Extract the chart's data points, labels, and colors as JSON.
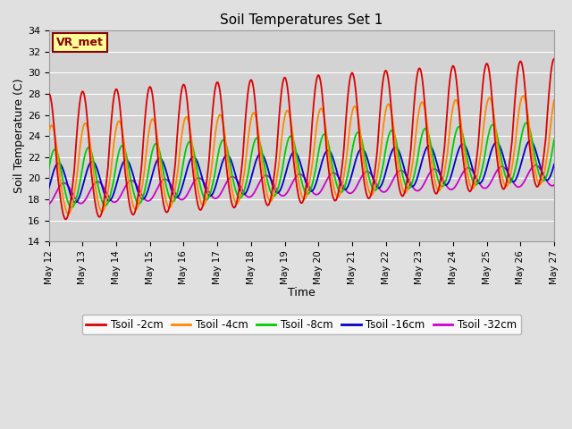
{
  "title": "Soil Temperatures Set 1",
  "xlabel": "Time",
  "ylabel": "Soil Temperature (C)",
  "annotation": "VR_met",
  "ylim": [
    14,
    34
  ],
  "yticks": [
    14,
    16,
    18,
    20,
    22,
    24,
    26,
    28,
    30,
    32,
    34
  ],
  "fig_bg_color": "#e0e0e0",
  "plot_bg_color": "#d3d3d3",
  "grid_color": "#ffffff",
  "series": [
    {
      "label": "Tsoil -2cm",
      "color": "#dd0000",
      "lw": 1.3
    },
    {
      "label": "Tsoil -4cm",
      "color": "#ff8800",
      "lw": 1.3
    },
    {
      "label": "Tsoil -8cm",
      "color": "#00cc00",
      "lw": 1.3
    },
    {
      "label": "Tsoil -16cm",
      "color": "#0000cc",
      "lw": 1.3
    },
    {
      "label": "Tsoil -32cm",
      "color": "#cc00cc",
      "lw": 1.3
    }
  ],
  "xtick_labels": [
    "May 12",
    "May 13",
    "May 14",
    "May 15",
    "May 16",
    "May 17",
    "May 18",
    "May 19",
    "May 20",
    "May 21",
    "May 22",
    "May 23",
    "May 24",
    "May 25",
    "May 26",
    "May 27"
  ],
  "start_day": 12,
  "end_day": 27,
  "points_per_day": 48
}
